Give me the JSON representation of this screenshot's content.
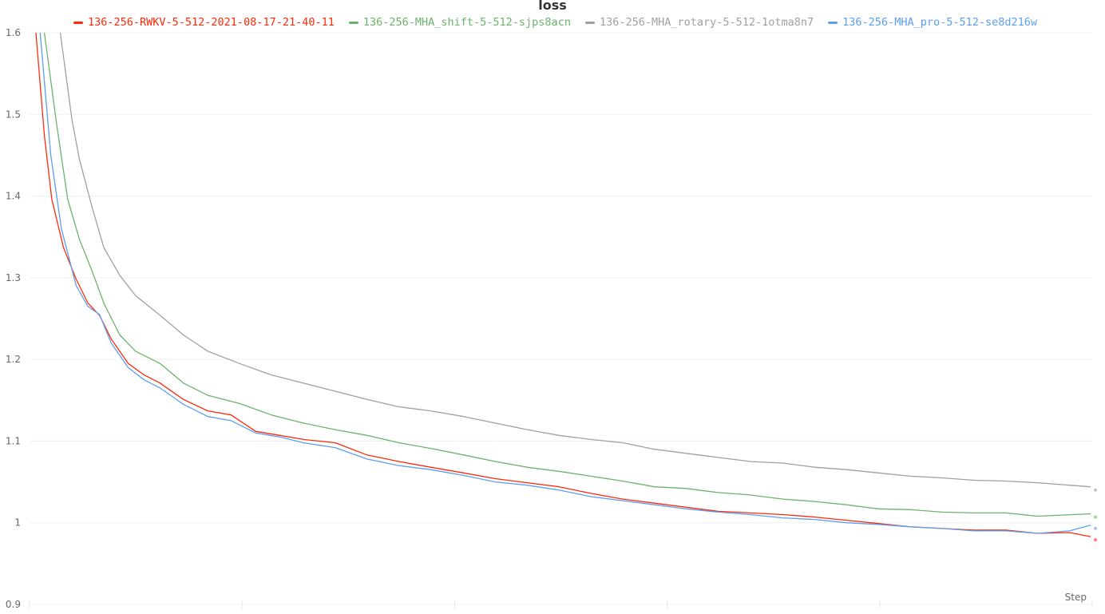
{
  "chart_data": {
    "type": "line",
    "title": "loss",
    "xlabel": "Step",
    "ylabel": "",
    "ylim": [
      0.9,
      1.6
    ],
    "xlim": [
      0,
      1000
    ],
    "yticks": [
      "0.9",
      "1",
      "1.1",
      "1.2",
      "1.3",
      "1.4",
      "1.5",
      "1.6"
    ],
    "grid": true,
    "legend_position": "top",
    "series": [
      {
        "name": "136-256-RWKV-5-512-2021-08-17-21-40-11",
        "color": "#ff2a0a",
        "points": [
          [
            6,
            1.6
          ],
          [
            14,
            1.474
          ],
          [
            21,
            1.396
          ],
          [
            32,
            1.337
          ],
          [
            44,
            1.298
          ],
          [
            55,
            1.269
          ],
          [
            66,
            1.254
          ],
          [
            77,
            1.225
          ],
          [
            93,
            1.195
          ],
          [
            108,
            1.181
          ],
          [
            123,
            1.171
          ],
          [
            145,
            1.151
          ],
          [
            168,
            1.137
          ],
          [
            190,
            1.132
          ],
          [
            213,
            1.112
          ],
          [
            236,
            1.107
          ],
          [
            258,
            1.102
          ],
          [
            288,
            1.098
          ],
          [
            318,
            1.083
          ],
          [
            348,
            1.075
          ],
          [
            378,
            1.068
          ],
          [
            409,
            1.061
          ],
          [
            439,
            1.054
          ],
          [
            469,
            1.049
          ],
          [
            499,
            1.044
          ],
          [
            529,
            1.036
          ],
          [
            559,
            1.029
          ],
          [
            589,
            1.024
          ],
          [
            619,
            1.019
          ],
          [
            649,
            1.014
          ],
          [
            679,
            1.012
          ],
          [
            710,
            1.01
          ],
          [
            740,
            1.007
          ],
          [
            770,
            1.003
          ],
          [
            800,
            0.999
          ],
          [
            830,
            0.995
          ],
          [
            860,
            0.993
          ],
          [
            890,
            0.991
          ],
          [
            920,
            0.991
          ],
          [
            950,
            0.987
          ],
          [
            980,
            0.988
          ],
          [
            1000,
            0.983
          ]
        ]
      },
      {
        "name": "136-256-MHA_shift-5-512-sjps8acn",
        "color": "#6bb36b",
        "points": [
          [
            14,
            1.6
          ],
          [
            25,
            1.493
          ],
          [
            36,
            1.396
          ],
          [
            47,
            1.347
          ],
          [
            59,
            1.308
          ],
          [
            70,
            1.269
          ],
          [
            85,
            1.23
          ],
          [
            100,
            1.21
          ],
          [
            123,
            1.195
          ],
          [
            145,
            1.171
          ],
          [
            168,
            1.156
          ],
          [
            198,
            1.146
          ],
          [
            228,
            1.132
          ],
          [
            258,
            1.122
          ],
          [
            288,
            1.114
          ],
          [
            318,
            1.107
          ],
          [
            348,
            1.098
          ],
          [
            378,
            1.091
          ],
          [
            409,
            1.083
          ],
          [
            439,
            1.075
          ],
          [
            469,
            1.068
          ],
          [
            499,
            1.063
          ],
          [
            529,
            1.057
          ],
          [
            559,
            1.051
          ],
          [
            589,
            1.044
          ],
          [
            619,
            1.042
          ],
          [
            649,
            1.037
          ],
          [
            679,
            1.034
          ],
          [
            710,
            1.029
          ],
          [
            740,
            1.026
          ],
          [
            770,
            1.022
          ],
          [
            800,
            1.017
          ],
          [
            830,
            1.016
          ],
          [
            860,
            1.013
          ],
          [
            890,
            1.012
          ],
          [
            920,
            1.012
          ],
          [
            950,
            1.008
          ],
          [
            1000,
            1.011
          ]
        ]
      },
      {
        "name": "136-256-MHA_rotary-5-512-1otma8n7",
        "color": "#a0a0a0",
        "points": [
          [
            29,
            1.6
          ],
          [
            40,
            1.493
          ],
          [
            47,
            1.445
          ],
          [
            59,
            1.386
          ],
          [
            70,
            1.337
          ],
          [
            85,
            1.303
          ],
          [
            100,
            1.278
          ],
          [
            123,
            1.254
          ],
          [
            145,
            1.23
          ],
          [
            168,
            1.21
          ],
          [
            198,
            1.195
          ],
          [
            228,
            1.181
          ],
          [
            258,
            1.171
          ],
          [
            288,
            1.161
          ],
          [
            318,
            1.151
          ],
          [
            348,
            1.142
          ],
          [
            378,
            1.137
          ],
          [
            409,
            1.13
          ],
          [
            439,
            1.122
          ],
          [
            469,
            1.114
          ],
          [
            499,
            1.107
          ],
          [
            529,
            1.102
          ],
          [
            559,
            1.098
          ],
          [
            589,
            1.09
          ],
          [
            619,
            1.085
          ],
          [
            649,
            1.08
          ],
          [
            679,
            1.075
          ],
          [
            710,
            1.073
          ],
          [
            740,
            1.068
          ],
          [
            770,
            1.065
          ],
          [
            800,
            1.061
          ],
          [
            830,
            1.057
          ],
          [
            860,
            1.055
          ],
          [
            890,
            1.052
          ],
          [
            920,
            1.051
          ],
          [
            950,
            1.049
          ],
          [
            1000,
            1.044
          ]
        ]
      },
      {
        "name": "136-256-MHA_pro-5-512-se8d216w",
        "color": "#5c9ef0",
        "points": [
          [
            10,
            1.6
          ],
          [
            20,
            1.45
          ],
          [
            30,
            1.36
          ],
          [
            44,
            1.29
          ],
          [
            55,
            1.265
          ],
          [
            66,
            1.255
          ],
          [
            77,
            1.22
          ],
          [
            93,
            1.19
          ],
          [
            108,
            1.175
          ],
          [
            123,
            1.165
          ],
          [
            145,
            1.145
          ],
          [
            168,
            1.13
          ],
          [
            190,
            1.125
          ],
          [
            213,
            1.11
          ],
          [
            236,
            1.105
          ],
          [
            258,
            1.098
          ],
          [
            288,
            1.092
          ],
          [
            318,
            1.078
          ],
          [
            348,
            1.07
          ],
          [
            378,
            1.065
          ],
          [
            409,
            1.058
          ],
          [
            439,
            1.05
          ],
          [
            469,
            1.046
          ],
          [
            499,
            1.04
          ],
          [
            529,
            1.032
          ],
          [
            559,
            1.027
          ],
          [
            589,
            1.022
          ],
          [
            619,
            1.017
          ],
          [
            649,
            1.013
          ],
          [
            679,
            1.01
          ],
          [
            710,
            1.006
          ],
          [
            740,
            1.004
          ],
          [
            770,
            1.0
          ],
          [
            800,
            0.998
          ],
          [
            830,
            0.995
          ],
          [
            860,
            0.993
          ],
          [
            890,
            0.99
          ],
          [
            920,
            0.99
          ],
          [
            950,
            0.987
          ],
          [
            980,
            0.99
          ],
          [
            1000,
            0.997
          ]
        ]
      }
    ]
  }
}
